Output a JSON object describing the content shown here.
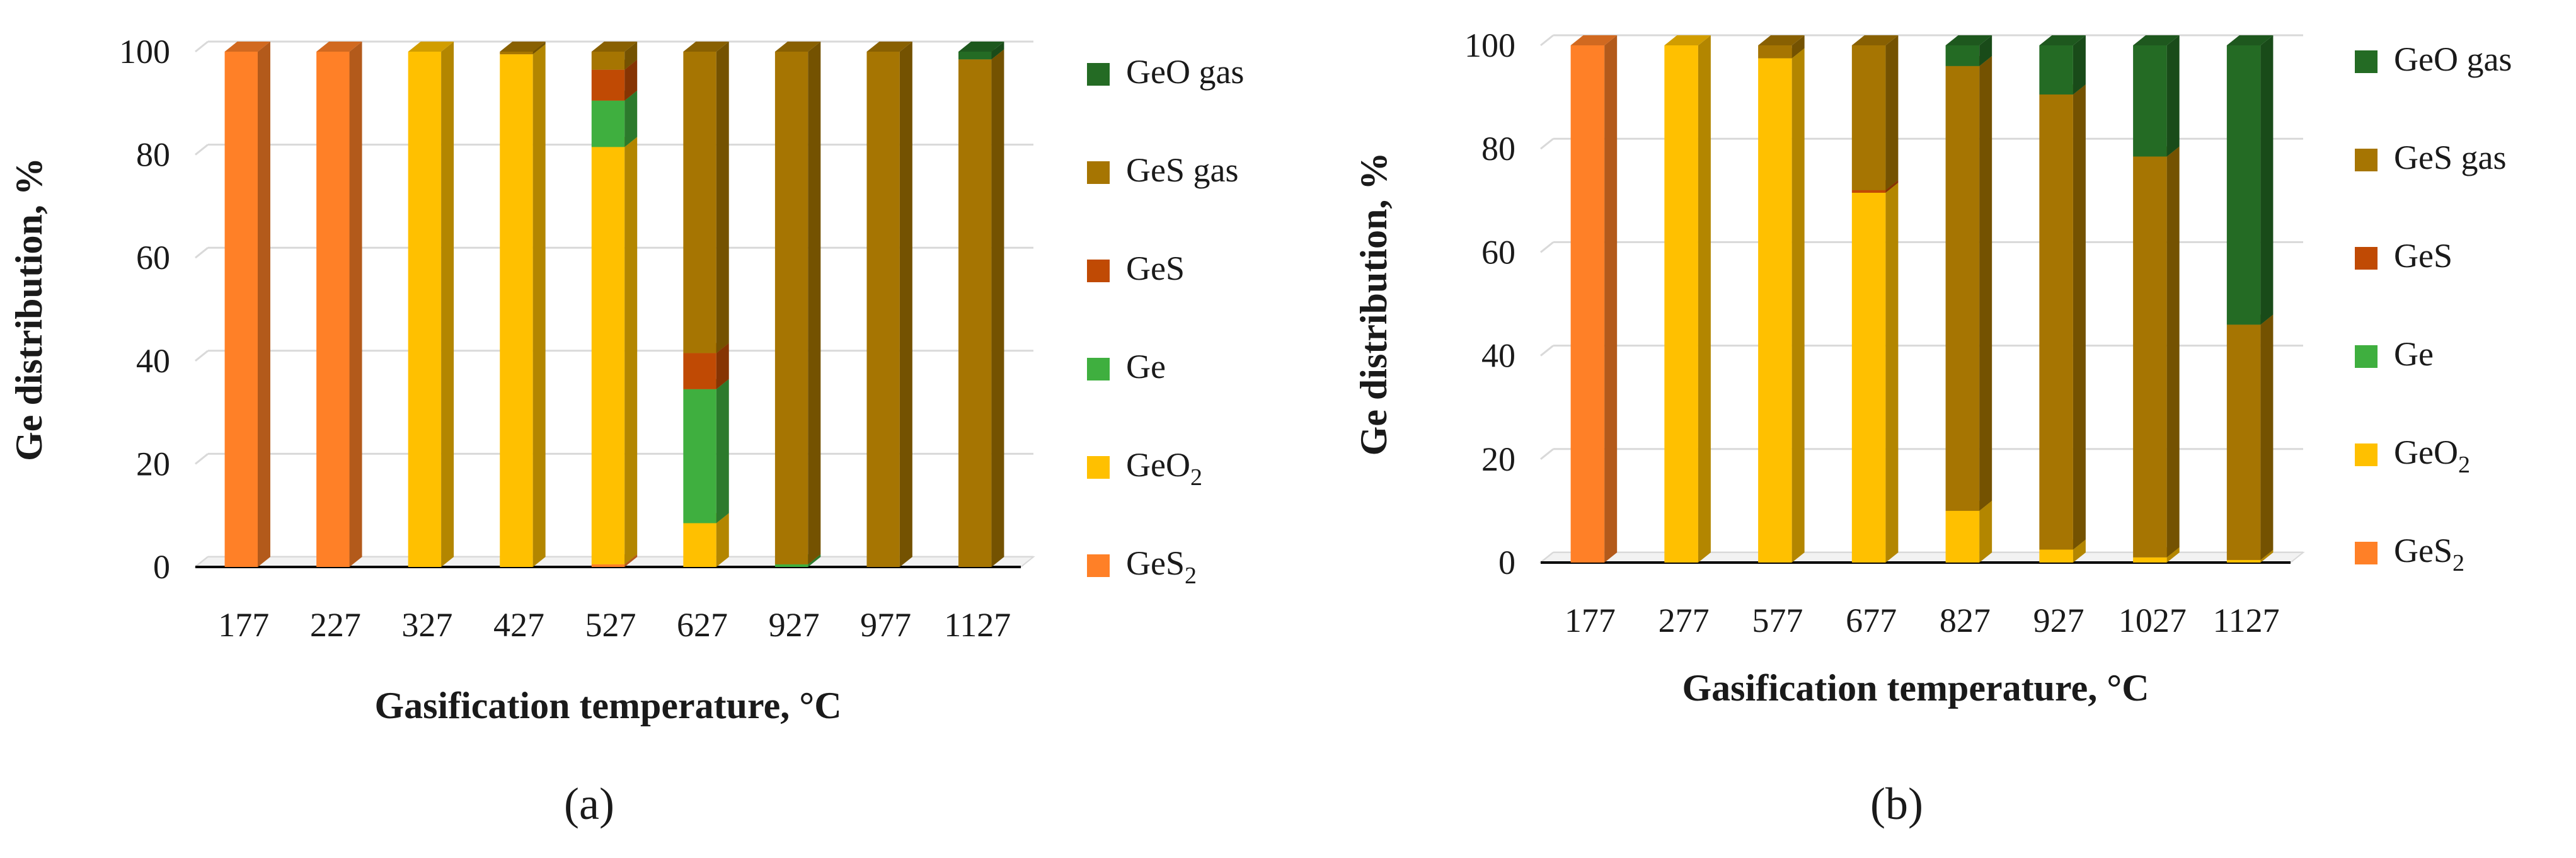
{
  "chart_data": [
    {
      "type": "bar",
      "stacked": true,
      "style": "3d-column",
      "panel_label": "(a)",
      "xlabel": "Gasification temperature, °C",
      "ylabel": "Ge distribution, %",
      "ylim": [
        0,
        100
      ],
      "yticks": [
        "0",
        "20",
        "40",
        "60",
        "80",
        "100"
      ],
      "grid": true,
      "legend_position": "right",
      "categories": [
        "177",
        "227",
        "327",
        "427",
        "527",
        "627",
        "927",
        "977",
        "1127"
      ],
      "series": [
        {
          "name": "GeS",
          "sub": "2",
          "color": "#FF8027",
          "values": [
            100,
            100,
            0,
            0,
            0.5,
            0,
            0,
            0,
            0
          ]
        },
        {
          "name": "GeO",
          "sub": "2",
          "color": "#FFC000",
          "values": [
            0,
            0,
            100,
            99.5,
            81,
            8.5,
            0,
            0,
            0
          ]
        },
        {
          "name": "Ge",
          "sub": "",
          "color": "#3FAF3F",
          "values": [
            0,
            0,
            0,
            0,
            9,
            26,
            0.5,
            0,
            0
          ]
        },
        {
          "name": "GeS",
          "sub": "",
          "color": "#C04A04",
          "values": [
            0,
            0,
            0,
            0,
            6,
            7,
            0,
            0,
            0
          ]
        },
        {
          "name": "GeS gas",
          "sub": "",
          "color": "#A67502",
          "values": [
            0,
            0,
            0,
            0.5,
            3.5,
            58.5,
            99.5,
            100,
            98.5
          ]
        },
        {
          "name": "GeO gas",
          "sub": "",
          "color": "#246B24",
          "values": [
            0,
            0,
            0,
            0,
            0,
            0,
            0,
            0,
            1.5
          ]
        }
      ]
    },
    {
      "type": "bar",
      "stacked": true,
      "style": "3d-column",
      "panel_label": "(b)",
      "xlabel": "Gasification temperature, °C",
      "ylabel": "Ge distribution, %",
      "ylim": [
        0,
        100
      ],
      "yticks": [
        "0",
        "20",
        "40",
        "60",
        "80",
        "100"
      ],
      "grid": true,
      "legend_position": "right",
      "categories": [
        "177",
        "277",
        "577",
        "677",
        "827",
        "927",
        "1027",
        "1127"
      ],
      "series": [
        {
          "name": "GeS",
          "sub": "2",
          "color": "#FF8027",
          "values": [
            100,
            0,
            0,
            0,
            0,
            0,
            0,
            0
          ]
        },
        {
          "name": "GeO",
          "sub": "2",
          "color": "#FFC000",
          "values": [
            0,
            100,
            97.5,
            71.5,
            10,
            2.5,
            1,
            0.5
          ]
        },
        {
          "name": "Ge",
          "sub": "",
          "color": "#3FAF3F",
          "values": [
            0,
            0,
            0,
            0,
            0,
            0,
            0,
            0
          ]
        },
        {
          "name": "GeS",
          "sub": "",
          "color": "#C04A04",
          "values": [
            0,
            0,
            0,
            0.5,
            0,
            0,
            0,
            0
          ]
        },
        {
          "name": "GeS gas",
          "sub": "",
          "color": "#A67502",
          "values": [
            0,
            0,
            2.5,
            28,
            86,
            88,
            77.5,
            45.5
          ]
        },
        {
          "name": "GeO gas",
          "sub": "",
          "color": "#246B24",
          "values": [
            0,
            0,
            0,
            0,
            4,
            9.5,
            21.5,
            54
          ]
        }
      ]
    }
  ]
}
